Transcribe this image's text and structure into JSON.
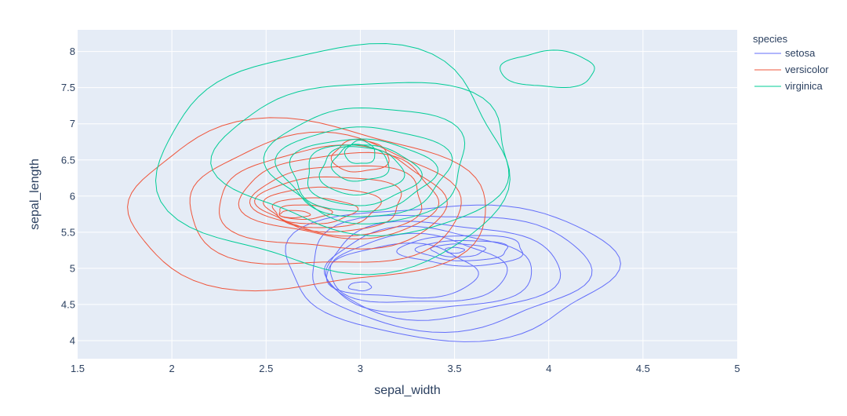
{
  "chart_data": {
    "type": "contour",
    "xlabel": "sepal_width",
    "ylabel": "sepal_length",
    "xlim": [
      1.5,
      5
    ],
    "ylim": [
      3.75,
      8.3
    ],
    "x_ticks": [
      "1.5",
      "2",
      "2.5",
      "3",
      "3.5",
      "4",
      "4.5",
      "5"
    ],
    "y_ticks": [
      "4",
      "4.5",
      "5",
      "5.5",
      "6",
      "6.5",
      "7",
      "7.5",
      "8"
    ],
    "grid": true,
    "legend": {
      "title": "species",
      "placement": "right",
      "entries": [
        "setosa",
        "versicolor",
        "virginica"
      ]
    },
    "series": [
      {
        "name": "setosa",
        "color": "#636efa",
        "contours": [
          {
            "cx": 3.47,
            "cy": 4.98,
            "rx": 0.87,
            "ry": 0.93
          },
          {
            "cx": 3.45,
            "cy": 4.98,
            "rx": 0.74,
            "ry": 0.8
          },
          {
            "cx": 3.42,
            "cy": 4.98,
            "rx": 0.62,
            "ry": 0.66
          },
          {
            "cx": 3.35,
            "cy": 4.97,
            "rx": 0.55,
            "ry": 0.57
          },
          {
            "cx": 3.3,
            "cy": 4.97,
            "rx": 0.47,
            "ry": 0.47
          },
          {
            "cx": 3.22,
            "cy": 4.95,
            "rx": 0.4,
            "ry": 0.37
          },
          {
            "cx": 3.0,
            "cy": 4.75,
            "rx": 0.06,
            "ry": 0.06
          },
          {
            "cx": 3.55,
            "cy": 5.25,
            "rx": 0.33,
            "ry": 0.21
          },
          {
            "cx": 3.55,
            "cy": 5.25,
            "rx": 0.24,
            "ry": 0.14
          },
          {
            "cx": 3.52,
            "cy": 5.25,
            "rx": 0.14,
            "ry": 0.09
          },
          {
            "cx": 3.5,
            "cy": 5.25,
            "rx": 0.05,
            "ry": 0.04
          }
        ]
      },
      {
        "name": "versicolor",
        "color": "#ef553b",
        "contours": [
          {
            "cx": 2.7,
            "cy": 5.85,
            "rx": 0.95,
            "ry": 1.15
          },
          {
            "cx": 2.8,
            "cy": 5.9,
            "rx": 0.72,
            "ry": 0.9
          },
          {
            "cx": 2.85,
            "cy": 5.95,
            "rx": 0.6,
            "ry": 0.7
          },
          {
            "cx": 2.9,
            "cy": 6.0,
            "rx": 0.52,
            "ry": 0.58
          },
          {
            "cx": 2.9,
            "cy": 5.95,
            "rx": 0.45,
            "ry": 0.48
          },
          {
            "cx": 2.85,
            "cy": 5.9,
            "rx": 0.38,
            "ry": 0.38
          },
          {
            "cx": 2.8,
            "cy": 5.85,
            "rx": 0.3,
            "ry": 0.28
          },
          {
            "cx": 2.75,
            "cy": 5.8,
            "rx": 0.22,
            "ry": 0.18
          },
          {
            "cx": 2.7,
            "cy": 5.78,
            "rx": 0.14,
            "ry": 0.1
          },
          {
            "cx": 2.65,
            "cy": 5.75,
            "rx": 0.08,
            "ry": 0.05
          },
          {
            "cx": 3.0,
            "cy": 6.55,
            "rx": 0.15,
            "ry": 0.22
          }
        ]
      },
      {
        "name": "virginica",
        "color": "#00cc96",
        "contours": [
          {
            "cx": 2.88,
            "cy": 6.5,
            "rx": 0.92,
            "ry": 1.55
          },
          {
            "cx": 3.05,
            "cy": 6.55,
            "rx": 0.78,
            "ry": 1.05
          },
          {
            "cx": 3.05,
            "cy": 6.45,
            "rx": 0.52,
            "ry": 0.8
          },
          {
            "cx": 3.02,
            "cy": 6.35,
            "rx": 0.45,
            "ry": 0.62
          },
          {
            "cx": 3.0,
            "cy": 6.3,
            "rx": 0.38,
            "ry": 0.5
          },
          {
            "cx": 3.0,
            "cy": 6.3,
            "rx": 0.3,
            "ry": 0.42
          },
          {
            "cx": 3.0,
            "cy": 6.35,
            "rx": 0.22,
            "ry": 0.33
          },
          {
            "cx": 3.0,
            "cy": 6.45,
            "rx": 0.15,
            "ry": 0.25
          },
          {
            "cx": 3.0,
            "cy": 6.6,
            "rx": 0.08,
            "ry": 0.16
          },
          {
            "cx": 4.0,
            "cy": 7.75,
            "rx": 0.25,
            "ry": 0.25
          }
        ]
      }
    ]
  }
}
